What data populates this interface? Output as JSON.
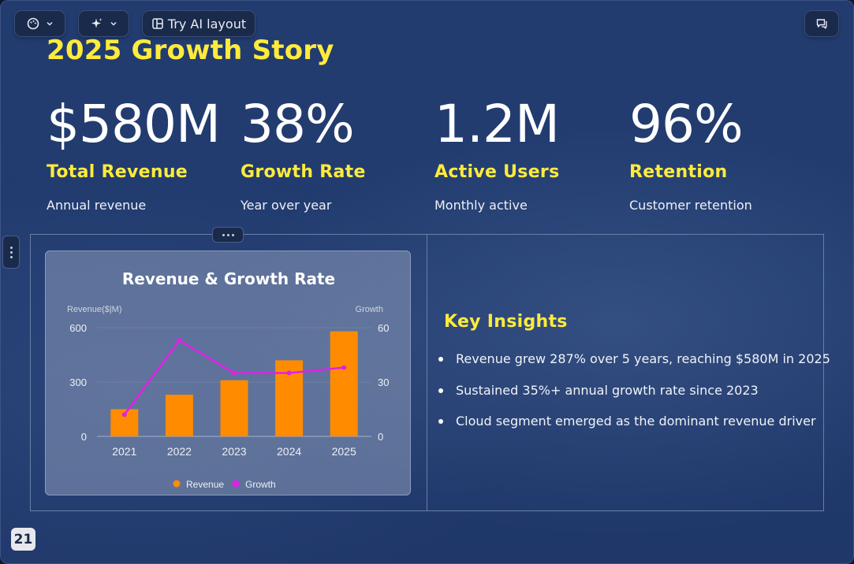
{
  "toolbar": {
    "theme_icon": "palette-icon",
    "ai_icon": "sparkle-icon",
    "try_ai_label": "Try AI layout",
    "comment_icon": "comment-icon"
  },
  "slide": {
    "title": "2025 Growth Story",
    "stats": [
      {
        "value": "$580M",
        "label": "Total Revenue",
        "sub": "Annual revenue"
      },
      {
        "value": "38%",
        "label": "Growth Rate",
        "sub": "Year over year"
      },
      {
        "value": "1.2M",
        "label": "Active Users",
        "sub": "Monthly active"
      },
      {
        "value": "96%",
        "label": "Retention",
        "sub": "Customer retention"
      }
    ],
    "insights": {
      "title": "Key Insights",
      "items": [
        "Revenue grew 287% over 5 years, reaching $580M in 2025",
        "Sustained 35%+ annual growth rate since 2023",
        "Cloud segment emerged as the dominant revenue driver"
      ]
    },
    "page_number": "21"
  },
  "colors": {
    "accent_yellow": "#ffeb3b",
    "bar_orange": "#ff8c00",
    "line_magenta": "#e020e8",
    "background": "#223c70"
  },
  "chart_data": {
    "type": "bar",
    "title": "Revenue & Growth Rate",
    "categories": [
      "2021",
      "2022",
      "2023",
      "2024",
      "2025"
    ],
    "ylabel": "Revenue($|M)",
    "y2label": "Growth",
    "ylim": [
      0,
      600
    ],
    "y2lim": [
      0,
      60
    ],
    "yticks": [
      "0",
      "300",
      "600"
    ],
    "y2ticks": [
      "0",
      "30",
      "60"
    ],
    "series": [
      {
        "name": "Revenue",
        "type": "bar",
        "axis": "left",
        "values": [
          150,
          230,
          310,
          420,
          580
        ]
      },
      {
        "name": "Growth",
        "type": "line",
        "axis": "right",
        "values": [
          12,
          53,
          35,
          35,
          38
        ]
      }
    ],
    "legend": "bottom-center",
    "grid": true
  }
}
